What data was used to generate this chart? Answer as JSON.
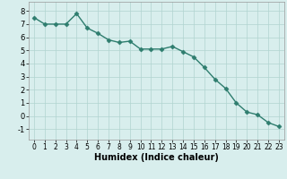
{
  "x": [
    0,
    1,
    2,
    3,
    4,
    5,
    6,
    7,
    8,
    9,
    10,
    11,
    12,
    13,
    14,
    15,
    16,
    17,
    18,
    19,
    20,
    21,
    22,
    23
  ],
  "y": [
    7.5,
    7.0,
    7.0,
    7.0,
    7.8,
    6.7,
    6.3,
    5.8,
    5.6,
    5.7,
    5.1,
    5.1,
    5.1,
    5.3,
    4.9,
    4.5,
    3.7,
    2.8,
    2.1,
    1.0,
    0.3,
    0.1,
    -0.5,
    -0.8
  ],
  "line_color": "#2e7d6e",
  "marker": "D",
  "marker_size": 2.5,
  "xlabel": "Humidex (Indice chaleur)",
  "xlim": [
    -0.5,
    23.5
  ],
  "ylim": [
    -1.8,
    8.7
  ],
  "yticks": [
    -1,
    0,
    1,
    2,
    3,
    4,
    5,
    6,
    7,
    8
  ],
  "xticks": [
    0,
    1,
    2,
    3,
    4,
    5,
    6,
    7,
    8,
    9,
    10,
    11,
    12,
    13,
    14,
    15,
    16,
    17,
    18,
    19,
    20,
    21,
    22,
    23
  ],
  "bg_color": "#d8eeed",
  "grid_color": "#b0d4d0",
  "line_width": 1.0,
  "tick_fontsize_x": 5.5,
  "tick_fontsize_y": 6.0,
  "xlabel_fontsize": 7.0
}
